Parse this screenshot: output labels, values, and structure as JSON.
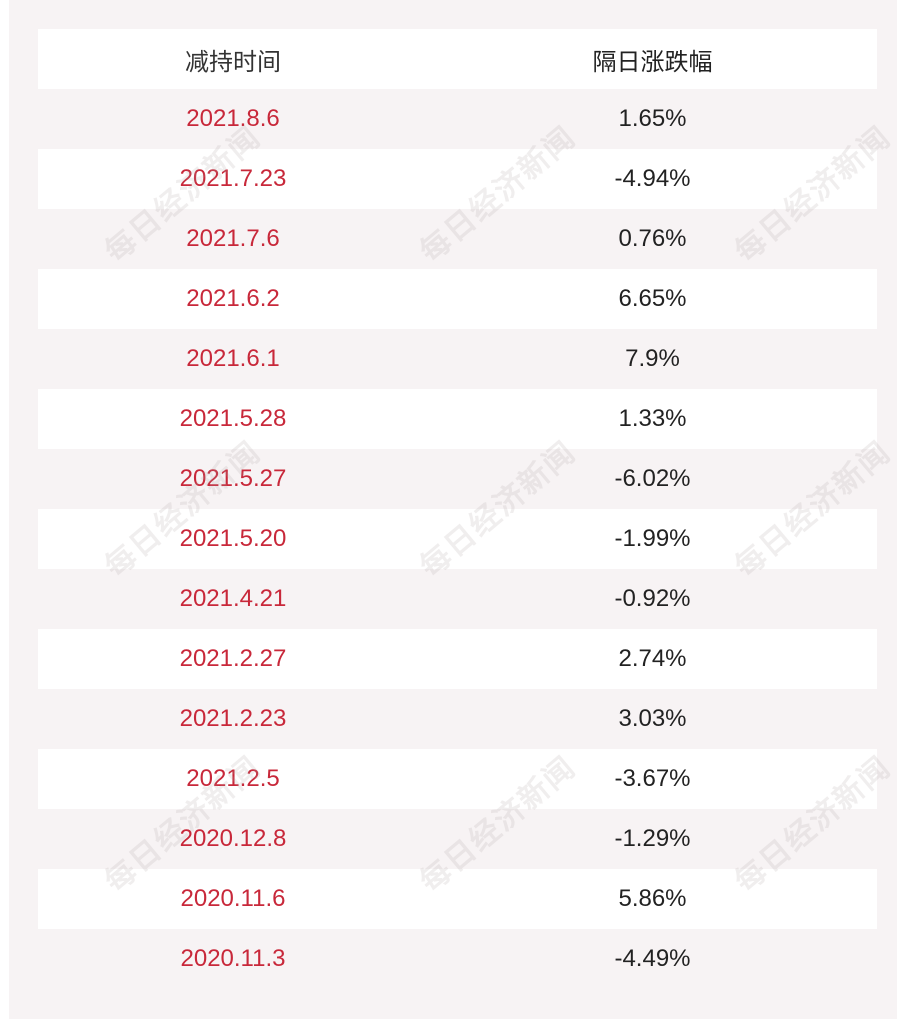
{
  "table": {
    "headers": [
      "减持时间",
      "隔日涨跌幅"
    ],
    "rows": [
      {
        "date": "2021.8.6",
        "change": "1.65%"
      },
      {
        "date": "2021.7.23",
        "change": "-4.94%"
      },
      {
        "date": "2021.7.6",
        "change": "0.76%"
      },
      {
        "date": "2021.6.2",
        "change": "6.65%"
      },
      {
        "date": "2021.6.1",
        "change": "7.9%"
      },
      {
        "date": "2021.5.28",
        "change": "1.33%"
      },
      {
        "date": "2021.5.27",
        "change": "-6.02%"
      },
      {
        "date": "2021.5.20",
        "change": "-1.99%"
      },
      {
        "date": "2021.4.21",
        "change": "-0.92%"
      },
      {
        "date": "2021.2.27",
        "change": "2.74%"
      },
      {
        "date": "2021.2.23",
        "change": "3.03%"
      },
      {
        "date": "2021.2.5",
        "change": "-3.67%"
      },
      {
        "date": "2020.12.8",
        "change": "-1.29%"
      },
      {
        "date": "2020.11.6",
        "change": "5.86%"
      },
      {
        "date": "2020.11.3",
        "change": "-4.49%"
      }
    ]
  },
  "watermark": {
    "text": "每日经济新闻"
  },
  "colors": {
    "date_text": "#c8283a",
    "value_text": "#222222",
    "band": "#f7f3f4",
    "row_white": "#ffffff"
  }
}
